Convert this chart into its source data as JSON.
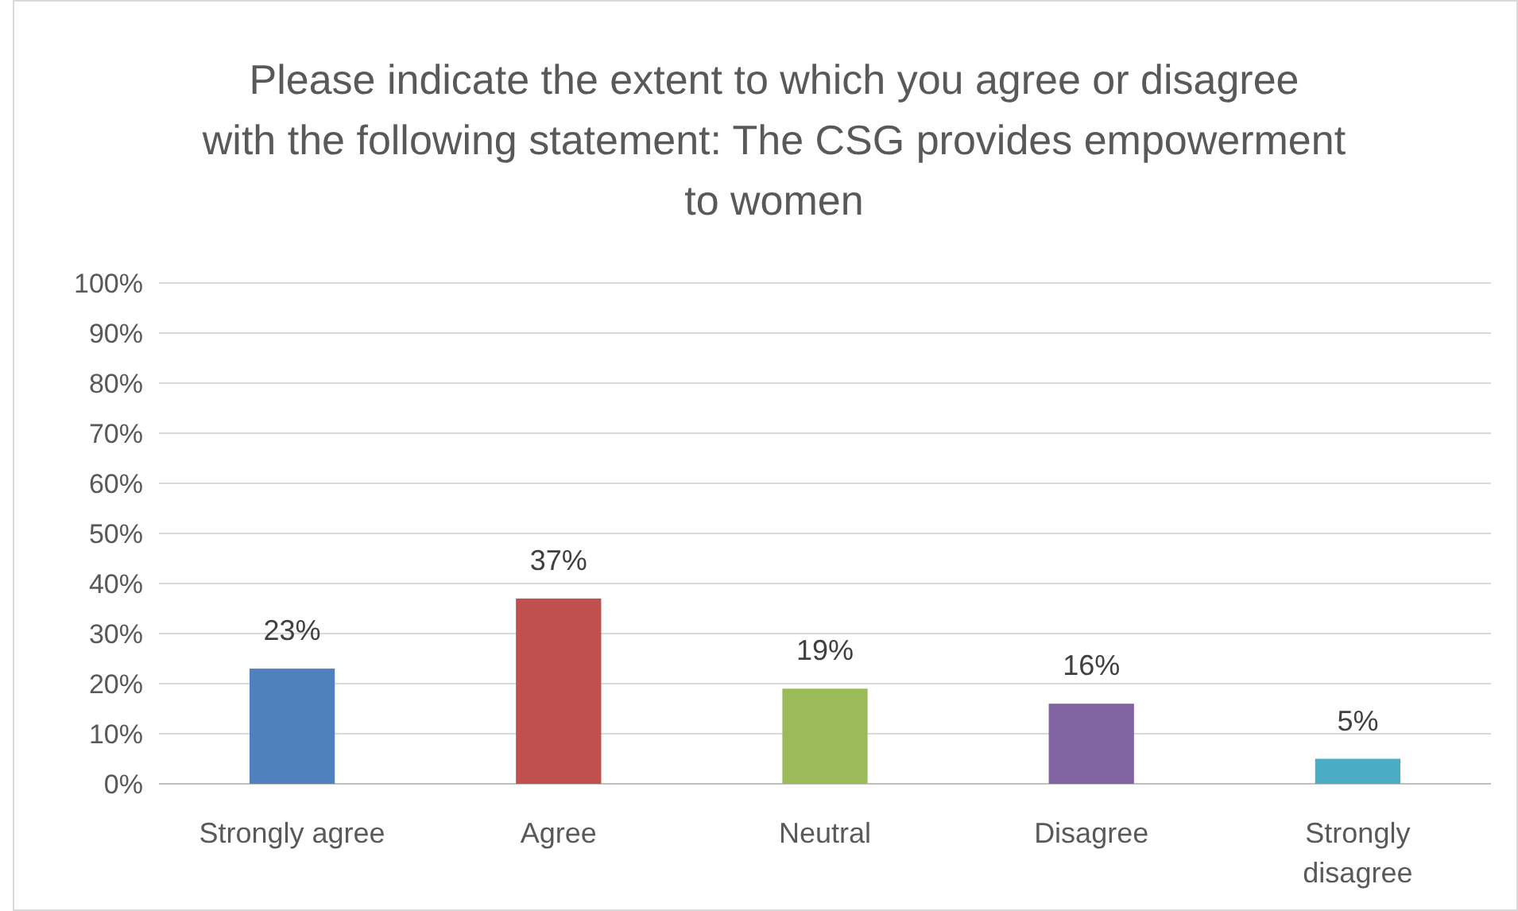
{
  "chart_data": {
    "type": "bar",
    "title": "Please indicate the extent to which you agree or disagree with the following statement: The CSG provides empowerment to women",
    "categories": [
      "Strongly agree",
      "Agree",
      "Neutral",
      "Disagree",
      "Strongly disagree"
    ],
    "values": [
      23,
      37,
      19,
      16,
      5
    ],
    "colors": [
      "#4f81bd",
      "#c0504d",
      "#9bbb59",
      "#8064a2",
      "#4bacc6"
    ],
    "value_labels": [
      "23%",
      "37%",
      "19%",
      "16%",
      "5%"
    ],
    "ylim": [
      0,
      100
    ],
    "yticks": [
      {
        "value": 0,
        "label": "0%"
      },
      {
        "value": 10,
        "label": "10%"
      },
      {
        "value": 20,
        "label": "20%"
      },
      {
        "value": 30,
        "label": "30%"
      },
      {
        "value": 40,
        "label": "40%"
      },
      {
        "value": 50,
        "label": "50%"
      },
      {
        "value": 60,
        "label": "60%"
      },
      {
        "value": 70,
        "label": "70%"
      },
      {
        "value": 80,
        "label": "80%"
      },
      {
        "value": 90,
        "label": "90%"
      },
      {
        "value": 100,
        "label": "100%"
      }
    ],
    "grid": "y"
  }
}
